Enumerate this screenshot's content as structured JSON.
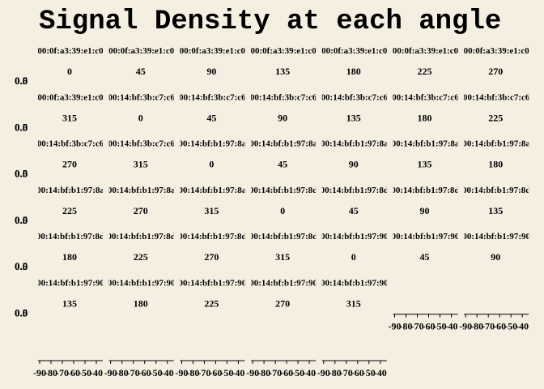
{
  "chart_data": {
    "type": "area",
    "title": "Signal Density at each angle",
    "y_tick_labels": [
      "0.5",
      "0.0"
    ],
    "ylim": [
      0.0,
      0.5
    ],
    "x_tick_labels": [
      "-90",
      "-80",
      "-70",
      "-60",
      "-50",
      "-40"
    ],
    "xlim": [
      -90,
      -40
    ],
    "panels": [
      {
        "mac": "00:0f:a3:39:e1:c0",
        "angle": "0"
      },
      {
        "mac": "00:0f:a3:39:e1:c0",
        "angle": "45"
      },
      {
        "mac": "00:0f:a3:39:e1:c0",
        "angle": "90"
      },
      {
        "mac": "00:0f:a3:39:e1:c0",
        "angle": "135"
      },
      {
        "mac": "00:0f:a3:39:e1:c0",
        "angle": "180"
      },
      {
        "mac": "00:0f:a3:39:e1:c0",
        "angle": "225"
      },
      {
        "mac": "00:0f:a3:39:e1:c0",
        "angle": "270"
      },
      {
        "mac": "00:0f:a3:39:e1:c0",
        "angle": "315"
      },
      {
        "mac": "00:14:bf:3b:c7:c6",
        "angle": "0"
      },
      {
        "mac": "00:14:bf:3b:c7:c6",
        "angle": "45"
      },
      {
        "mac": "00:14:bf:3b:c7:c6",
        "angle": "90"
      },
      {
        "mac": "00:14:bf:3b:c7:c6",
        "angle": "135"
      },
      {
        "mac": "00:14:bf:3b:c7:c6",
        "angle": "180"
      },
      {
        "mac": "00:14:bf:3b:c7:c6",
        "angle": "225"
      },
      {
        "mac": "00:14:bf:3b:c7:c6",
        "angle": "270"
      },
      {
        "mac": "00:14:bf:3b:c7:c6",
        "angle": "315"
      },
      {
        "mac": "00:14:bf:b1:97:8a",
        "angle": "0"
      },
      {
        "mac": "00:14:bf:b1:97:8a",
        "angle": "45"
      },
      {
        "mac": "00:14:bf:b1:97:8a",
        "angle": "90"
      },
      {
        "mac": "00:14:bf:b1:97:8a",
        "angle": "135"
      },
      {
        "mac": "00:14:bf:b1:97:8a",
        "angle": "180"
      },
      {
        "mac": "00:14:bf:b1:97:8a",
        "angle": "225"
      },
      {
        "mac": "00:14:bf:b1:97:8a",
        "angle": "270"
      },
      {
        "mac": "00:14:bf:b1:97:8a",
        "angle": "315"
      },
      {
        "mac": "00:14:bf:b1:97:8d",
        "angle": "0"
      },
      {
        "mac": "00:14:bf:b1:97:8d",
        "angle": "45"
      },
      {
        "mac": "00:14:bf:b1:97:8d",
        "angle": "90"
      },
      {
        "mac": "00:14:bf:b1:97:8d",
        "angle": "135"
      },
      {
        "mac": "00:14:bf:b1:97:8d",
        "angle": "180"
      },
      {
        "mac": "00:14:bf:b1:97:8d",
        "angle": "225"
      },
      {
        "mac": "00:14:bf:b1:97:8d",
        "angle": "270"
      },
      {
        "mac": "00:14:bf:b1:97:8d",
        "angle": "315"
      },
      {
        "mac": "00:14:bf:b1:97:90",
        "angle": "0"
      },
      {
        "mac": "00:14:bf:b1:97:90",
        "angle": "45"
      },
      {
        "mac": "00:14:bf:b1:97:90",
        "angle": "90"
      },
      {
        "mac": "00:14:bf:b1:97:90",
        "angle": "135"
      },
      {
        "mac": "00:14:bf:b1:97:90",
        "angle": "180"
      },
      {
        "mac": "00:14:bf:b1:97:90",
        "angle": "225"
      },
      {
        "mac": "00:14:bf:b1:97:90",
        "angle": "270"
      },
      {
        "mac": "00:14:bf:b1:97:90",
        "angle": "315"
      }
    ],
    "grid": false,
    "legend": "none"
  },
  "colors": {
    "background": "#f5efe2",
    "text": "#000000"
  }
}
